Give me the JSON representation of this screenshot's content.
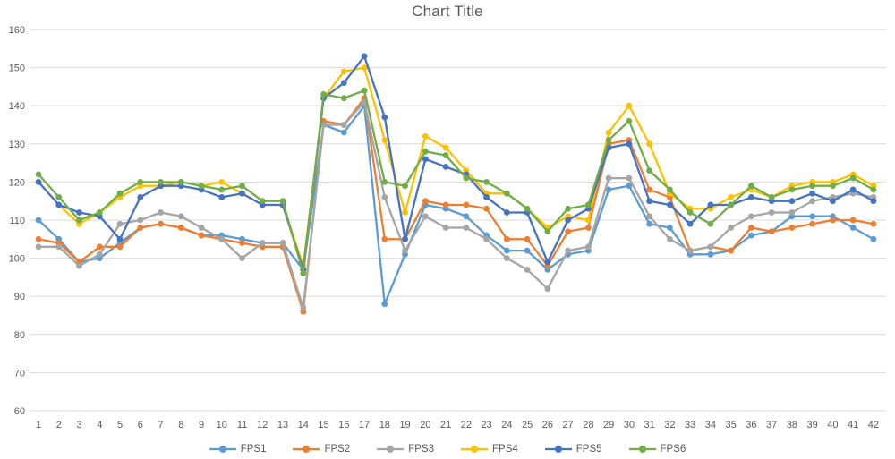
{
  "title": "Chart Title",
  "chart_data": {
    "type": "line",
    "title": "Chart Title",
    "x": [
      1,
      2,
      3,
      4,
      5,
      6,
      7,
      8,
      9,
      10,
      11,
      12,
      13,
      14,
      15,
      16,
      17,
      18,
      19,
      20,
      21,
      22,
      23,
      24,
      25,
      26,
      27,
      28,
      29,
      30,
      31,
      32,
      33,
      34,
      35,
      36,
      37,
      38,
      39,
      40,
      41,
      42
    ],
    "yticks": [
      60,
      70,
      80,
      90,
      100,
      110,
      120,
      130,
      140,
      150,
      160
    ],
    "ylim": [
      60,
      160
    ],
    "grid": "horizontal",
    "legend_position": "bottom",
    "grid_color": "#d9d9d9",
    "axis_color": "#d9d9d9",
    "text_color": "#595959",
    "series": [
      {
        "name": "FPS1",
        "color": "#5B9BD5",
        "values": [
          110,
          105,
          99,
          100,
          104,
          108,
          109,
          108,
          106,
          106,
          105,
          104,
          104,
          97,
          135,
          133,
          140,
          88,
          101,
          114,
          113,
          111,
          106,
          102,
          102,
          97,
          101,
          102,
          118,
          119,
          109,
          108,
          101,
          101,
          102,
          106,
          107,
          111,
          111,
          111,
          108,
          105
        ]
      },
      {
        "name": "FPS2",
        "color": "#ED7D31",
        "values": [
          105,
          104,
          99,
          103,
          103,
          108,
          109,
          108,
          106,
          105,
          104,
          103,
          103,
          86,
          136,
          135,
          142,
          105,
          105,
          115,
          114,
          114,
          113,
          105,
          105,
          98,
          107,
          108,
          130,
          131,
          118,
          116,
          102,
          103,
          102,
          108,
          107,
          108,
          109,
          110,
          110,
          109
        ]
      },
      {
        "name": "FPS3",
        "color": "#A5A5A5",
        "values": [
          103,
          103,
          98,
          101,
          109,
          110,
          112,
          111,
          108,
          105,
          100,
          104,
          104,
          87,
          135,
          135,
          141,
          116,
          102,
          111,
          108,
          108,
          105,
          100,
          97,
          92,
          102,
          103,
          121,
          121,
          111,
          105,
          102,
          103,
          108,
          111,
          112,
          112,
          115,
          116,
          117,
          116
        ]
      },
      {
        "name": "FPS4",
        "color": "#FFC000",
        "values": [
          120,
          114,
          109,
          112,
          116,
          119,
          119,
          120,
          119,
          120,
          117,
          114,
          114,
          98,
          142,
          149,
          150,
          131,
          112,
          132,
          129,
          123,
          117,
          117,
          113,
          108,
          111,
          110,
          133,
          140,
          130,
          117,
          113,
          113,
          116,
          118,
          116,
          119,
          120,
          120,
          122,
          119
        ]
      },
      {
        "name": "FPS5",
        "color": "#4472C4",
        "values": [
          120,
          114,
          112,
          111,
          105,
          116,
          119,
          119,
          118,
          116,
          117,
          114,
          114,
          97,
          142,
          146,
          153,
          137,
          105,
          126,
          124,
          122,
          116,
          112,
          112,
          99,
          110,
          113,
          129,
          130,
          115,
          114,
          109,
          114,
          114,
          116,
          115,
          115,
          117,
          115,
          118,
          115
        ]
      },
      {
        "name": "FPS6",
        "color": "#70AD47",
        "values": [
          122,
          116,
          110,
          112,
          117,
          120,
          120,
          120,
          119,
          118,
          119,
          115,
          115,
          96,
          143,
          142,
          144,
          120,
          119,
          128,
          127,
          121,
          120,
          117,
          113,
          107,
          113,
          114,
          131,
          136,
          123,
          118,
          112,
          109,
          114,
          119,
          116,
          118,
          119,
          119,
          121,
          118
        ]
      }
    ]
  }
}
